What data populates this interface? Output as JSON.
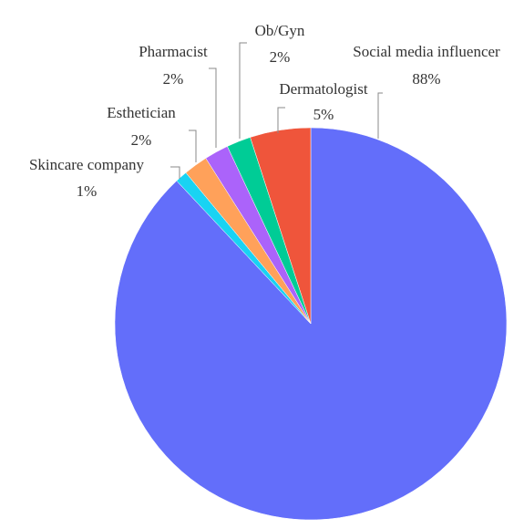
{
  "chart_data": {
    "type": "pie",
    "categories": [
      "Social media influencer",
      "Skincare company",
      "Esthetician",
      "Pharmacist",
      "Ob/Gyn",
      "Dermatologist"
    ],
    "values": [
      88,
      1,
      2,
      2,
      2,
      5
    ],
    "value_labels": [
      "88%",
      "1%",
      "2%",
      "2%",
      "2%",
      "5%"
    ],
    "colors": [
      "#636efa",
      "#19d3f3",
      "#ffa15a",
      "#ab63fa",
      "#00cc96",
      "#ef553b"
    ]
  }
}
